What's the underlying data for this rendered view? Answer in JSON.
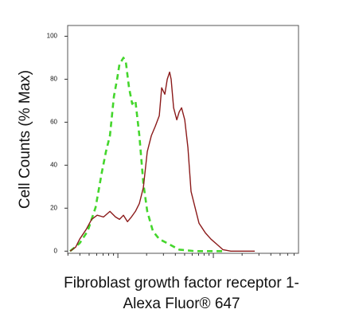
{
  "chart_data": {
    "type": "line",
    "y_label": "Cell Counts (% Max)",
    "x_label": [
      "Fibroblast growth factor receptor 1-",
      "Alexa Fluor® 647"
    ],
    "log_x": true,
    "xlim": [
      298,
      77900
    ],
    "xticks": [
      1000,
      10000
    ],
    "ylim": [
      -1,
      105
    ],
    "yticks": [
      0,
      20,
      40,
      60,
      80,
      100
    ],
    "series": [
      {
        "color": "#44d62c",
        "dash": true,
        "x": [
          316,
          398,
          482,
          585,
          681,
          750,
          825,
          909,
          981,
          1039,
          1144,
          1212,
          1308,
          1413,
          1525,
          1679,
          1848,
          2033,
          2326,
          2712,
          3286,
          4382,
          6431,
          12590
        ],
        "values": [
          0,
          3.7,
          9.3,
          20.4,
          37,
          46.3,
          53.7,
          72,
          80,
          87,
          90,
          88,
          76,
          68.5,
          70,
          53.7,
          31.5,
          18.5,
          9.3,
          5.6,
          3.7,
          0.7,
          0,
          0
        ]
      },
      {
        "color": "#8b1a1a",
        "dash": false,
        "x": [
          316,
          362,
          398,
          464,
          531,
          607,
          708,
          825,
          944,
          1039,
          1144,
          1259,
          1386,
          1525,
          1679,
          1848,
          2033,
          2239,
          2464,
          2712,
          2873,
          3104,
          3286,
          3481,
          3616,
          3831,
          4137,
          4382,
          4642,
          5012,
          5412,
          5843,
          6431,
          7079,
          8254,
          9441,
          10800,
          12590,
          15250,
          27120
        ],
        "values": [
          0,
          1.9,
          5.6,
          10,
          14.8,
          16.7,
          15.9,
          18.5,
          15.9,
          14.8,
          16.7,
          13.7,
          15.9,
          18.5,
          22.2,
          29.6,
          46.3,
          53.7,
          58.1,
          63,
          76,
          73,
          80,
          83.3,
          80,
          66.7,
          61.1,
          64.8,
          66.7,
          61.1,
          48.1,
          27.8,
          20.4,
          13,
          8.5,
          5.6,
          3.3,
          0.7,
          0,
          0
        ]
      }
    ]
  }
}
